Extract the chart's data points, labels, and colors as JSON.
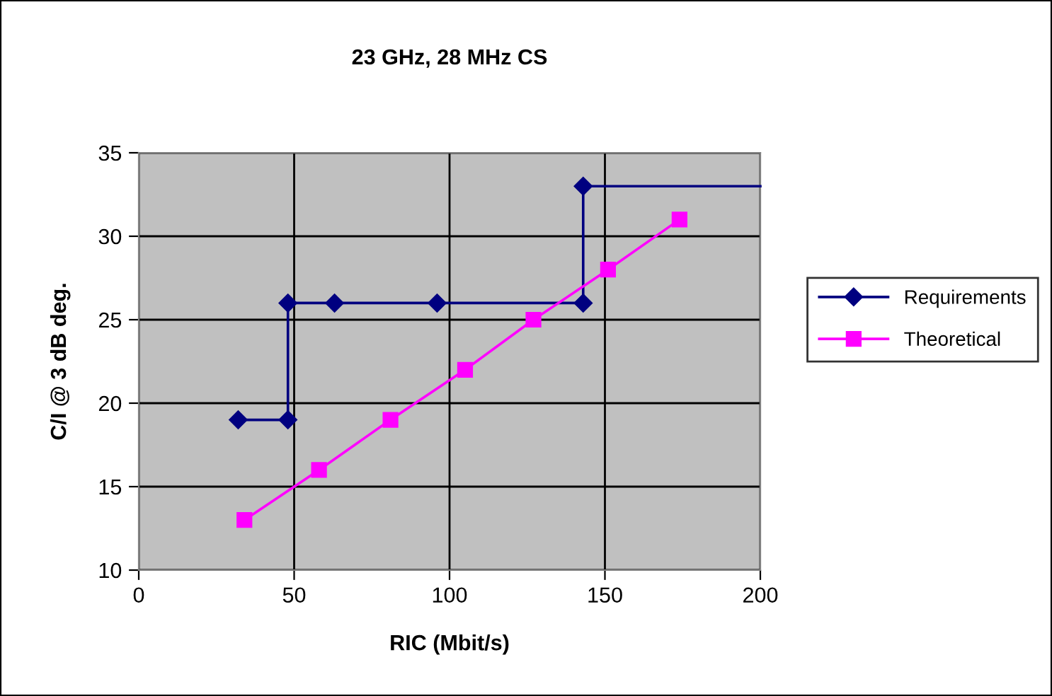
{
  "chart_data": {
    "type": "line",
    "title": "23 GHz, 28 MHz CS",
    "xlabel": "RIC (Mbit/s)",
    "ylabel": "C/I @ 3 dB deg.",
    "xlim": [
      0,
      200
    ],
    "xticks": [
      0,
      50,
      100,
      150,
      200
    ],
    "ylim": [
      10,
      35
    ],
    "yticks": [
      10,
      15,
      20,
      25,
      30,
      35
    ],
    "grid": true,
    "legend": "right",
    "series": [
      {
        "name": "Requirements",
        "color": "#000080",
        "marker": "diamond",
        "x": [
          32,
          48,
          48,
          63,
          96,
          143,
          143
        ],
        "values": [
          19,
          19,
          26,
          26,
          26,
          26,
          33
        ]
      },
      {
        "name": "Theoretical",
        "color": "#ff00ff",
        "marker": "square",
        "x": [
          34,
          58,
          81,
          105,
          127,
          151,
          174
        ],
        "values": [
          13,
          16,
          19,
          22,
          25,
          28,
          31
        ]
      },
      {
        "color": "#000080",
        "marker": "none",
        "x": [
          143,
          200
        ],
        "values": [
          33,
          33
        ]
      }
    ]
  }
}
